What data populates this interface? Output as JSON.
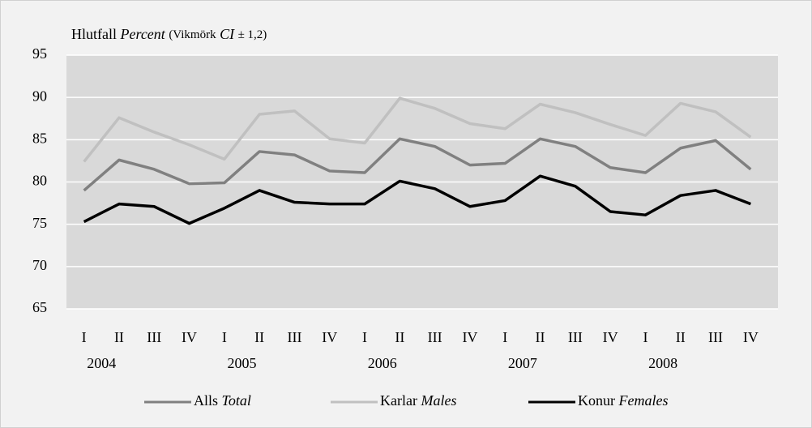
{
  "chart_data": {
    "type": "line",
    "title": [
      "Hlutfall",
      "Percent",
      "(Vikmörk",
      "CI",
      "± 1,2)"
    ],
    "categories": [
      "I",
      "II",
      "III",
      "IV",
      "I",
      "II",
      "III",
      "IV",
      "I",
      "II",
      "III",
      "IV",
      "I",
      "II",
      "III",
      "IV",
      "I",
      "II",
      "III",
      "IV"
    ],
    "years": [
      "2004",
      "2005",
      "2006",
      "2007",
      "2008"
    ],
    "series": [
      {
        "name": "Alls",
        "name_italic": "Total",
        "color": "#808080",
        "values": [
          79.0,
          82.6,
          81.5,
          79.8,
          79.9,
          83.6,
          83.2,
          81.3,
          81.1,
          85.1,
          84.2,
          82.0,
          82.2,
          85.1,
          84.2,
          81.7,
          81.1,
          84.0,
          84.9,
          81.5
        ]
      },
      {
        "name": "Karlar",
        "name_italic": "Males",
        "color": "#c0c0c0",
        "values": [
          82.4,
          87.6,
          85.9,
          84.4,
          82.7,
          88.0,
          88.4,
          85.1,
          84.6,
          89.9,
          88.7,
          86.9,
          86.3,
          89.2,
          88.2,
          86.8,
          85.5,
          89.3,
          88.3,
          85.3
        ]
      },
      {
        "name": "Konur",
        "name_italic": "Females",
        "color": "#000000",
        "values": [
          75.3,
          77.4,
          77.1,
          75.1,
          76.9,
          79.0,
          77.6,
          77.4,
          77.4,
          80.1,
          79.2,
          77.1,
          77.8,
          80.7,
          79.5,
          76.5,
          76.1,
          78.4,
          79.0,
          77.4
        ]
      }
    ],
    "ylim": [
      65,
      95
    ],
    "yticks": [
      65,
      70,
      75,
      80,
      85,
      90,
      95
    ],
    "grid": true,
    "legend": "bottom"
  }
}
